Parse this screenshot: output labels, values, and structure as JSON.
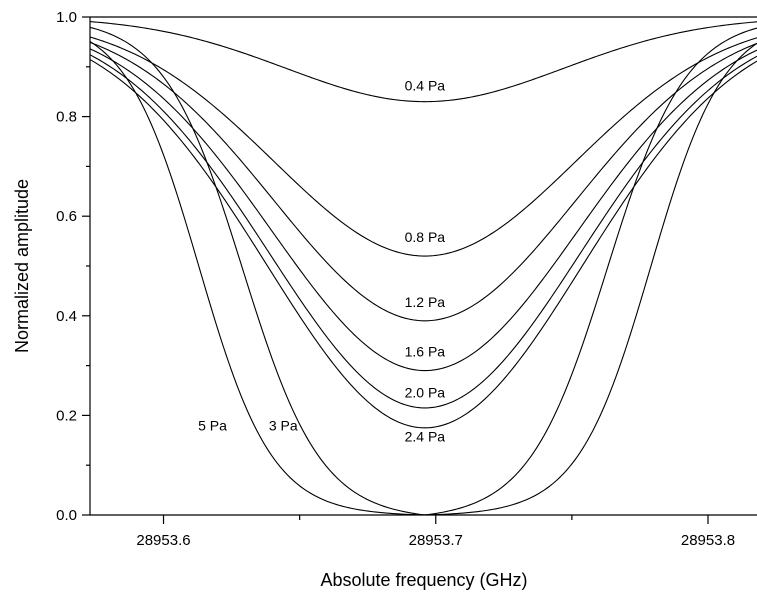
{
  "chart_data": {
    "type": "line",
    "xlabel": "Absolute frequency (GHz)",
    "ylabel": "Normalized amplitude",
    "xlim": [
      28953.573,
      28953.818
    ],
    "ylim": [
      0.0,
      1.0
    ],
    "x_ticks": [
      {
        "value": 28953.6,
        "label": "28953.6"
      },
      {
        "value": 28953.7,
        "label": "28953.7"
      },
      {
        "value": 28953.8,
        "label": "28953.8"
      }
    ],
    "y_ticks": [
      {
        "value": 0.0,
        "label": "0.0"
      },
      {
        "value": 0.2,
        "label": "0.2"
      },
      {
        "value": 0.4,
        "label": "0.4"
      },
      {
        "value": 0.6,
        "label": "0.6"
      },
      {
        "value": 0.8,
        "label": "0.8"
      },
      {
        "value": 1.0,
        "label": "1.0"
      }
    ],
    "grid": false,
    "legend": "none",
    "line_color": "#000000",
    "series": [
      {
        "name": "0.4 Pa",
        "center": 28953.696,
        "min": 0.83,
        "halfwidth": 0.06,
        "label_x": 28953.696,
        "label_y": 0.852
      },
      {
        "name": "0.8 Pa",
        "center": 28953.696,
        "min": 0.52,
        "halfwidth": 0.065,
        "label_x": 28953.696,
        "label_y": 0.548
      },
      {
        "name": "1.2 Pa",
        "center": 28953.696,
        "min": 0.39,
        "halfwidth": 0.065,
        "label_x": 28953.696,
        "label_y": 0.418
      },
      {
        "name": "1.6 Pa",
        "center": 28953.696,
        "min": 0.29,
        "halfwidth": 0.066,
        "label_x": 28953.696,
        "label_y": 0.318
      },
      {
        "name": "2.0 Pa",
        "center": 28953.696,
        "min": 0.215,
        "halfwidth": 0.067,
        "label_x": 28953.696,
        "label_y": 0.236
      },
      {
        "name": "2.4 Pa",
        "center": 28953.696,
        "min": 0.175,
        "halfwidth": 0.068,
        "label_x": 28953.696,
        "label_y": 0.148
      },
      {
        "name": "3 Pa",
        "center": 28953.696,
        "min": 0.0,
        "halfwidth": 0.067,
        "edge_width": 0.0145,
        "label_x": 28953.644,
        "label_y": 0.17
      },
      {
        "name": "5 Pa",
        "center": 28953.696,
        "min": 0.0,
        "halfwidth": 0.083,
        "edge_width": 0.0135,
        "label_x": 28953.618,
        "label_y": 0.17
      }
    ]
  }
}
